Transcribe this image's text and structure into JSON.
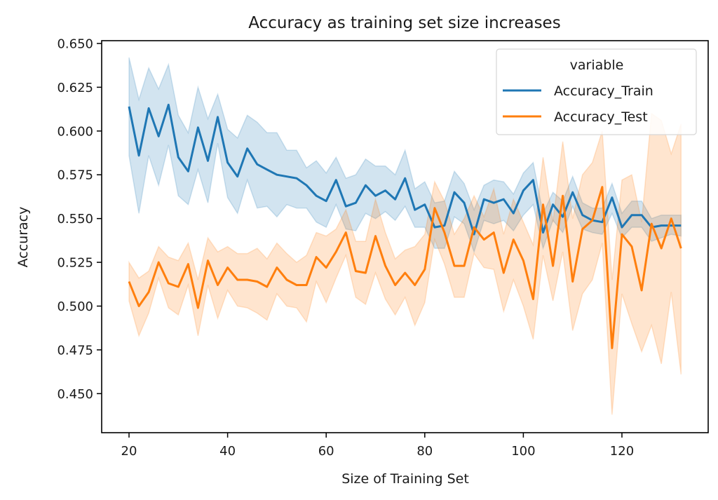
{
  "chart_data": {
    "type": "line",
    "title": "Accuracy as training set size increases",
    "xlabel": "Size of Training Set",
    "ylabel": "Accuracy",
    "xlim": [
      14.45,
      137.5
    ],
    "ylim": [
      0.4277,
      0.6516
    ],
    "xticks": [
      20,
      40,
      60,
      80,
      100,
      120
    ],
    "xtick_labels": [
      "20",
      "40",
      "60",
      "80",
      "100",
      "120"
    ],
    "yticks": [
      0.45,
      0.475,
      0.5,
      0.525,
      0.55,
      0.575,
      0.6,
      0.625,
      0.65
    ],
    "ytick_labels": [
      "0.450",
      "0.475",
      "0.500",
      "0.525",
      "0.550",
      "0.575",
      "0.600",
      "0.625",
      "0.650"
    ],
    "grid": false,
    "legend": {
      "title": "variable",
      "placement": "upper-right",
      "entries": [
        "Accuracy_Train",
        "Accuracy_Test"
      ]
    },
    "x": [
      20,
      22,
      24,
      26,
      28,
      30,
      32,
      34,
      36,
      38,
      40,
      42,
      44,
      46,
      48,
      50,
      52,
      54,
      56,
      58,
      60,
      62,
      64,
      66,
      68,
      70,
      72,
      74,
      76,
      78,
      80,
      82,
      84,
      86,
      88,
      90,
      92,
      94,
      96,
      98,
      100,
      102,
      104,
      106,
      108,
      110,
      112,
      114,
      116,
      118,
      120,
      122,
      124,
      126,
      128,
      130,
      132
    ],
    "series": [
      {
        "name": "Accuracy_Train",
        "color": "#1f77b4",
        "values": [
          0.614,
          0.586,
          0.613,
          0.597,
          0.615,
          0.585,
          0.577,
          0.602,
          0.583,
          0.608,
          0.582,
          0.574,
          0.59,
          0.581,
          0.578,
          0.575,
          0.574,
          0.573,
          0.569,
          0.563,
          0.56,
          0.572,
          0.557,
          0.559,
          0.569,
          0.563,
          0.566,
          0.561,
          0.573,
          0.555,
          0.558,
          0.545,
          0.546,
          0.565,
          0.559,
          0.541,
          0.561,
          0.559,
          0.561,
          0.553,
          0.566,
          0.572,
          0.542,
          0.558,
          0.551,
          0.565,
          0.552,
          0.549,
          0.548,
          0.562,
          0.545,
          0.552,
          0.552,
          0.545,
          0.546,
          0.546,
          0.546
        ],
        "ci_upper": [
          0.642,
          0.618,
          0.636,
          0.624,
          0.638,
          0.609,
          0.599,
          0.625,
          0.607,
          0.621,
          0.601,
          0.596,
          0.609,
          0.605,
          0.599,
          0.599,
          0.589,
          0.589,
          0.579,
          0.583,
          0.576,
          0.585,
          0.573,
          0.575,
          0.584,
          0.58,
          0.58,
          0.575,
          0.589,
          0.567,
          0.571,
          0.559,
          0.56,
          0.577,
          0.57,
          0.555,
          0.569,
          0.572,
          0.571,
          0.564,
          0.576,
          0.582,
          0.553,
          0.565,
          0.56,
          0.574,
          0.559,
          0.556,
          0.556,
          0.57,
          0.553,
          0.56,
          0.56,
          0.55,
          0.552,
          0.552,
          0.552
        ],
        "ci_lower": [
          0.586,
          0.553,
          0.586,
          0.569,
          0.592,
          0.563,
          0.558,
          0.578,
          0.559,
          0.593,
          0.562,
          0.553,
          0.572,
          0.556,
          0.557,
          0.551,
          0.558,
          0.556,
          0.556,
          0.548,
          0.545,
          0.558,
          0.544,
          0.543,
          0.553,
          0.55,
          0.554,
          0.549,
          0.557,
          0.545,
          0.545,
          0.533,
          0.533,
          0.551,
          0.547,
          0.531,
          0.549,
          0.547,
          0.549,
          0.543,
          0.552,
          0.558,
          0.533,
          0.549,
          0.542,
          0.557,
          0.544,
          0.542,
          0.541,
          0.553,
          0.539,
          0.545,
          0.545,
          0.537,
          0.539,
          0.541,
          0.54
        ]
      },
      {
        "name": "Accuracy_Test",
        "color": "#ff7f0e",
        "values": [
          0.514,
          0.5,
          0.508,
          0.525,
          0.513,
          0.511,
          0.524,
          0.499,
          0.526,
          0.512,
          0.522,
          0.515,
          0.515,
          0.514,
          0.511,
          0.522,
          0.515,
          0.512,
          0.512,
          0.528,
          0.522,
          0.531,
          0.542,
          0.52,
          0.519,
          0.54,
          0.523,
          0.512,
          0.519,
          0.512,
          0.521,
          0.556,
          0.542,
          0.523,
          0.523,
          0.545,
          0.538,
          0.542,
          0.519,
          0.538,
          0.526,
          0.504,
          0.558,
          0.523,
          0.563,
          0.514,
          0.544,
          0.549,
          0.568,
          0.476,
          0.541,
          0.534,
          0.509,
          0.547,
          0.533,
          0.55,
          0.533
        ],
        "ci_upper": [
          0.525,
          0.516,
          0.52,
          0.534,
          0.528,
          0.526,
          0.536,
          0.515,
          0.539,
          0.531,
          0.534,
          0.53,
          0.53,
          0.533,
          0.527,
          0.536,
          0.53,
          0.525,
          0.529,
          0.542,
          0.54,
          0.544,
          0.555,
          0.537,
          0.537,
          0.561,
          0.542,
          0.527,
          0.532,
          0.534,
          0.541,
          0.571,
          0.56,
          0.541,
          0.55,
          0.563,
          0.551,
          0.567,
          0.541,
          0.561,
          0.548,
          0.535,
          0.585,
          0.548,
          0.594,
          0.55,
          0.575,
          0.582,
          0.6,
          0.515,
          0.572,
          0.575,
          0.548,
          0.61,
          0.606,
          0.587,
          0.604
        ],
        "ci_lower": [
          0.503,
          0.483,
          0.496,
          0.516,
          0.499,
          0.495,
          0.512,
          0.483,
          0.512,
          0.493,
          0.509,
          0.5,
          0.499,
          0.496,
          0.492,
          0.507,
          0.5,
          0.499,
          0.491,
          0.514,
          0.502,
          0.516,
          0.529,
          0.505,
          0.501,
          0.519,
          0.504,
          0.495,
          0.505,
          0.489,
          0.502,
          0.538,
          0.524,
          0.505,
          0.505,
          0.53,
          0.522,
          0.521,
          0.497,
          0.515,
          0.5,
          0.481,
          0.529,
          0.503,
          0.531,
          0.486,
          0.507,
          0.515,
          0.536,
          0.438,
          0.507,
          0.49,
          0.474,
          0.489,
          0.467,
          0.508,
          0.461
        ]
      }
    ]
  }
}
